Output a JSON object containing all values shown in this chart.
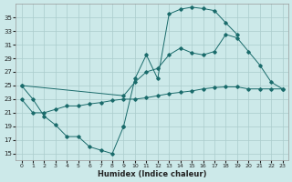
{
  "xlabel": "Humidex (Indice chaleur)",
  "background_color": "#cce9e9",
  "grid_color": "#aacccc",
  "line_color": "#1a6b6b",
  "xlim": [
    -0.5,
    23.5
  ],
  "ylim": [
    14,
    37
  ],
  "yticks": [
    15,
    17,
    19,
    21,
    23,
    25,
    27,
    29,
    31,
    33,
    35
  ],
  "xticks": [
    0,
    1,
    2,
    3,
    4,
    5,
    6,
    7,
    8,
    9,
    10,
    11,
    12,
    13,
    14,
    15,
    16,
    17,
    18,
    19,
    20,
    21,
    22,
    23
  ],
  "line1_x": [
    0,
    1,
    2,
    3,
    4,
    5,
    6,
    7,
    8,
    9,
    10,
    11,
    12,
    13,
    14,
    15,
    16,
    17,
    18,
    19,
    20,
    21,
    22,
    23
  ],
  "line1_y": [
    25.0,
    23.0,
    20.5,
    19.2,
    17.5,
    17.5,
    16.0,
    15.5,
    15.0,
    19.0,
    26.0,
    29.5,
    26.0,
    35.5,
    36.2,
    36.5,
    36.3,
    36.0,
    34.2,
    32.5,
    null,
    null,
    null,
    null
  ],
  "line2_x": [
    0,
    9,
    10,
    11,
    12,
    13,
    14,
    15,
    16,
    17,
    18,
    19,
    20,
    21,
    22,
    23
  ],
  "line2_y": [
    25.0,
    23.5,
    25.5,
    27.0,
    27.5,
    29.5,
    30.5,
    29.8,
    29.5,
    30.0,
    32.5,
    32.0,
    30.0,
    28.0,
    25.5,
    24.5
  ],
  "line3_x": [
    0,
    1,
    2,
    3,
    4,
    5,
    6,
    7,
    8,
    9,
    10,
    11,
    12,
    13,
    14,
    15,
    16,
    17,
    18,
    19,
    20,
    21,
    22,
    23
  ],
  "line3_y": [
    23.0,
    21.0,
    21.0,
    21.5,
    22.0,
    22.0,
    22.3,
    22.5,
    22.8,
    23.0,
    23.0,
    23.2,
    23.5,
    23.8,
    24.0,
    24.2,
    24.5,
    24.7,
    24.8,
    24.8,
    24.5,
    24.5,
    24.5,
    24.5
  ]
}
